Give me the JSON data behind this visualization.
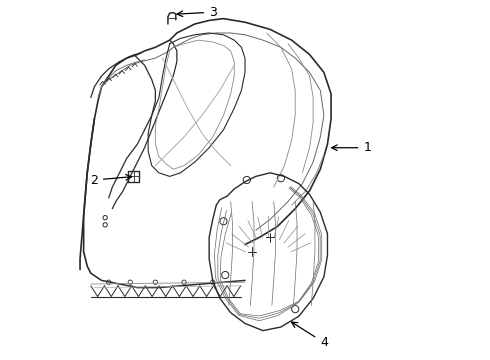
{
  "background_color": "#ffffff",
  "line_color": "#2a2a2a",
  "label_color": "#000000",
  "line_width": 1.0,
  "fig_width": 4.9,
  "fig_height": 3.6,
  "dpi": 100
}
